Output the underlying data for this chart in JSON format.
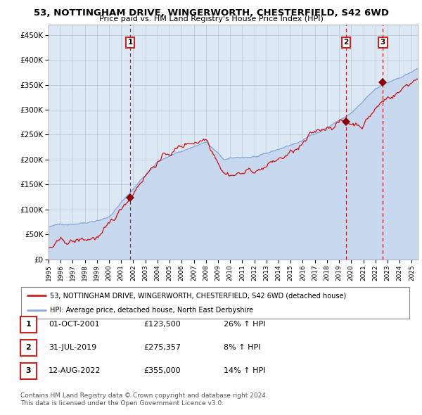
{
  "title": "53, NOTTINGHAM DRIVE, WINGERWORTH, CHESTERFIELD, S42 6WD",
  "subtitle": "Price paid vs. HM Land Registry's House Price Index (HPI)",
  "ylabel_ticks": [
    "£0",
    "£50K",
    "£100K",
    "£150K",
    "£200K",
    "£250K",
    "£300K",
    "£350K",
    "£400K",
    "£450K"
  ],
  "ytick_values": [
    0,
    50000,
    100000,
    150000,
    200000,
    250000,
    300000,
    350000,
    400000,
    450000
  ],
  "ylim": [
    0,
    470000
  ],
  "xlim_start": 1995.0,
  "xlim_end": 2025.5,
  "xtick_years": [
    1995,
    1996,
    1997,
    1998,
    1999,
    2000,
    2001,
    2002,
    2003,
    2004,
    2005,
    2006,
    2007,
    2008,
    2009,
    2010,
    2011,
    2012,
    2013,
    2014,
    2015,
    2016,
    2017,
    2018,
    2019,
    2020,
    2021,
    2022,
    2023,
    2024,
    2025
  ],
  "hpi_color": "#88aadd",
  "hpi_fill_color": "#c8d8ee",
  "price_color": "#cc2222",
  "bg_color": "#dde8f5",
  "grid_color": "#b8c8d8",
  "sale_dates": [
    2001.75,
    2019.58,
    2022.62
  ],
  "sale_prices": [
    123500,
    275357,
    355000
  ],
  "sale_labels": [
    "1",
    "2",
    "3"
  ],
  "vline_color": "#cc2222",
  "marker_color": "#880000",
  "legend_line1": "53, NOTTINGHAM DRIVE, WINGERWORTH, CHESTERFIELD, S42 6WD (detached house)",
  "legend_line2": "HPI: Average price, detached house, North East Derbyshire",
  "table_rows": [
    [
      "1",
      "01-OCT-2001",
      "£123,500",
      "26% ↑ HPI"
    ],
    [
      "2",
      "31-JUL-2019",
      "£275,357",
      "8% ↑ HPI"
    ],
    [
      "3",
      "12-AUG-2022",
      "£355,000",
      "14% ↑ HPI"
    ]
  ],
  "footer_text": "Contains HM Land Registry data © Crown copyright and database right 2024.\nThis data is licensed under the Open Government Licence v3.0.",
  "label_box_color": "#cc2222"
}
